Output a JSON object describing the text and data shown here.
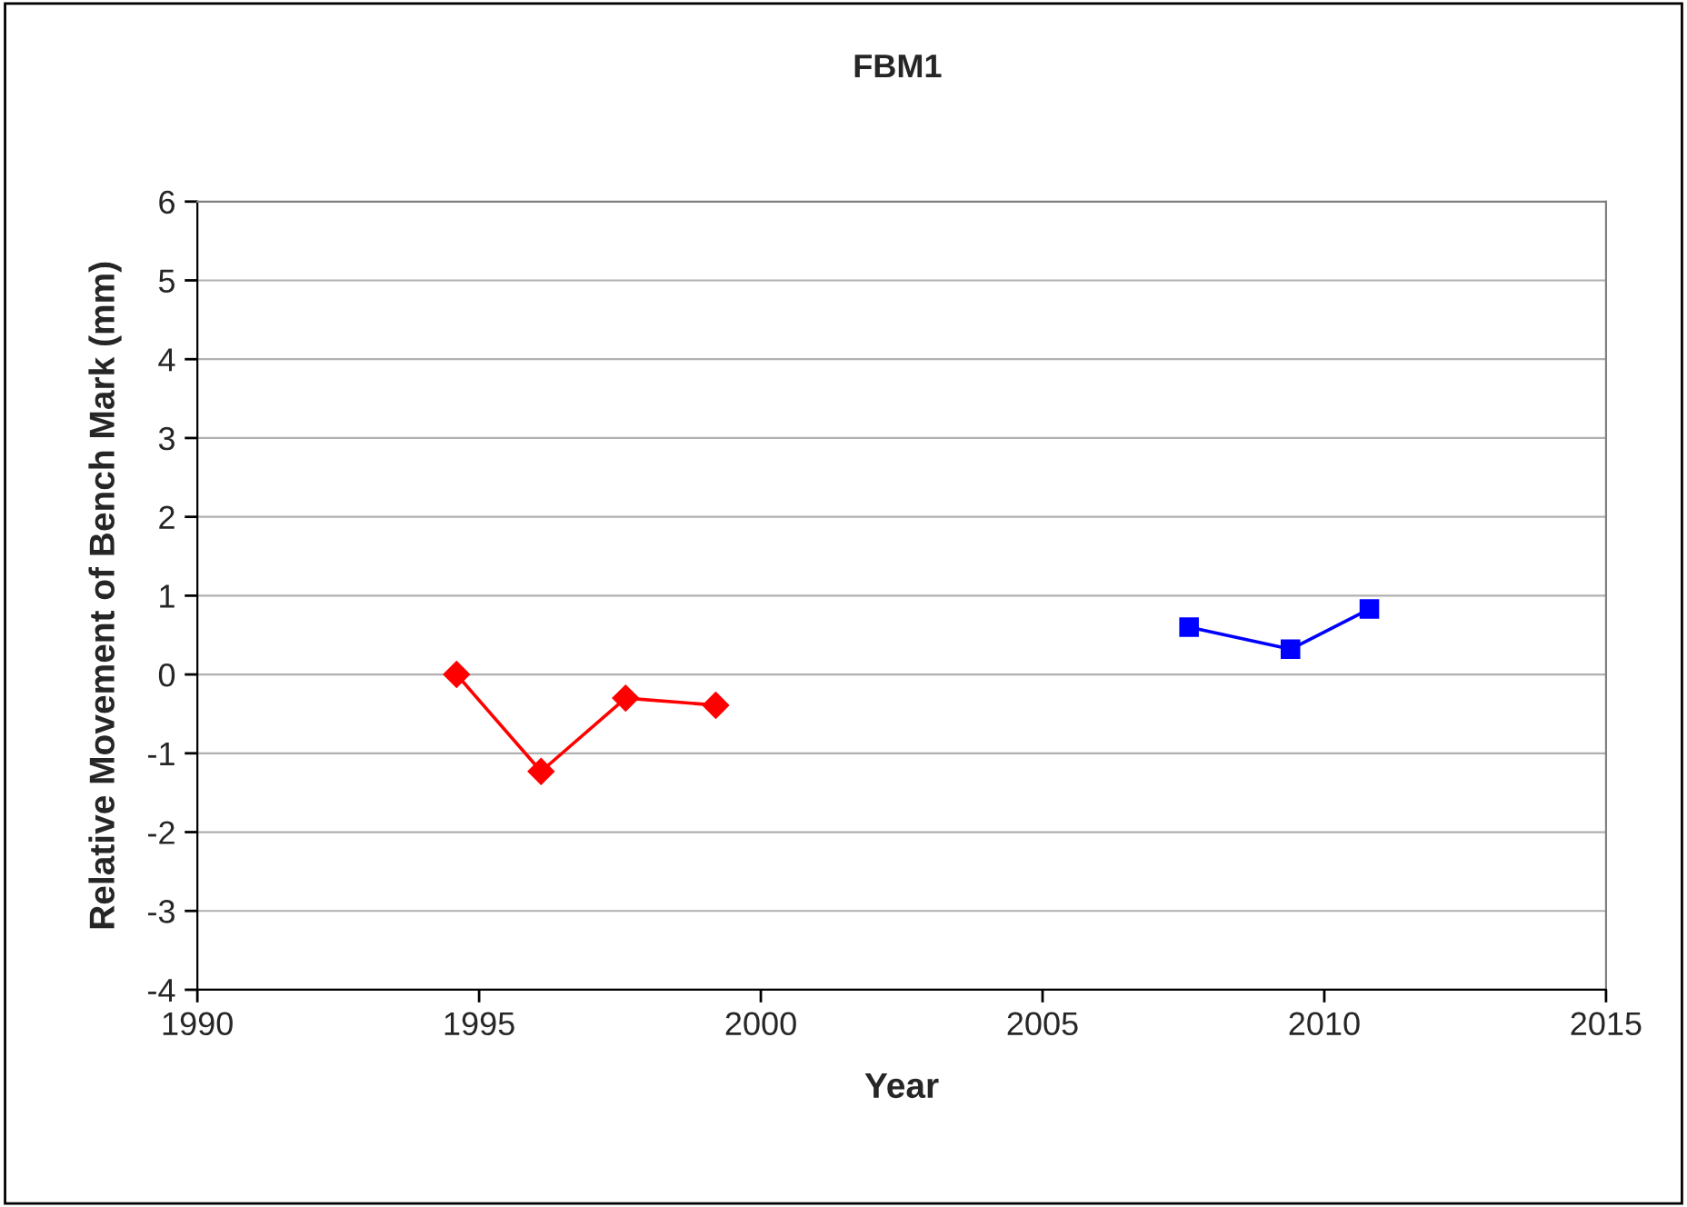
{
  "chart_data": {
    "type": "line",
    "title": "FBM1",
    "xlabel": "Year",
    "ylabel": "Relative Movement of Bench Mark (mm)",
    "series": [
      {
        "color": "#ff0000",
        "marker": "diamond",
        "x": [
          1994.6,
          1996.1,
          1997.6,
          1999.2
        ],
        "values": [
          0.0,
          -1.23,
          -0.3,
          -0.39
        ]
      },
      {
        "color": "#0000ff",
        "marker": "square",
        "x": [
          2007.6,
          2009.4,
          2010.8
        ],
        "values": [
          0.6,
          0.32,
          0.83
        ]
      }
    ],
    "xlim": [
      1990,
      2015
    ],
    "xticks": [
      1990,
      1995,
      2000,
      2005,
      2010,
      2015
    ],
    "ylim": [
      -4,
      6
    ],
    "yticks": [
      -4,
      -3,
      -2,
      -1,
      0,
      1,
      2,
      3,
      4,
      5,
      6
    ],
    "grid": "y",
    "line_style": "solid"
  }
}
